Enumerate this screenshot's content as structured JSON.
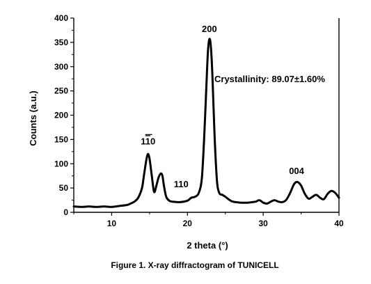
{
  "chart_data": {
    "type": "line",
    "xlabel": "2 theta (°)",
    "ylabel": "Counts (a.u.)",
    "xlim": [
      5,
      40
    ],
    "ylim": [
      0,
      400
    ],
    "x_ticks": [
      10,
      20,
      30,
      40
    ],
    "y_ticks": [
      0,
      50,
      100,
      150,
      200,
      250,
      300,
      350,
      400
    ],
    "grid": false,
    "caption": "Figure 1. X-ray diffractogram of TUNICELL",
    "annotation": "Crystallinity: 89.07±1.60%",
    "peak_labels": [
      {
        "text": "110",
        "overline": true,
        "x": 14.8,
        "y": 120
      },
      {
        "text": "110",
        "overline": false,
        "x": 16.6,
        "y": 80
      },
      {
        "text": "200",
        "overline": false,
        "x": 22.9,
        "y": 357
      },
      {
        "text": "004",
        "overline": false,
        "x": 34.4,
        "y": 62
      }
    ],
    "series": [
      {
        "color": "#000000",
        "x": [
          5,
          6,
          7,
          8,
          9,
          10,
          11,
          12,
          12.5,
          13,
          13.5,
          14,
          14.3,
          14.6,
          14.8,
          15.0,
          15.3,
          15.6,
          15.9,
          16.2,
          16.5,
          16.7,
          16.9,
          17.2,
          17.6,
          18,
          19,
          20,
          20.5,
          21,
          21.5,
          21.9,
          22.2,
          22.5,
          22.7,
          22.9,
          23.1,
          23.3,
          23.6,
          23.9,
          24.2,
          24.6,
          25,
          25.5,
          26,
          27,
          28,
          29,
          29.5,
          30,
          30.5,
          31,
          31.5,
          32,
          32.5,
          33,
          33.5,
          34,
          34.3,
          34.6,
          35,
          35.5,
          36,
          36.5,
          37,
          37.5,
          38,
          38.5,
          39,
          39.5,
          40
        ],
        "y": [
          12,
          11,
          12,
          11,
          12,
          11,
          13,
          15,
          18,
          22,
          30,
          50,
          80,
          110,
          120,
          110,
          75,
          42,
          55,
          72,
          80,
          75,
          55,
          32,
          24,
          22,
          21,
          24,
          30,
          32,
          40,
          70,
          150,
          260,
          330,
          357,
          340,
          280,
          150,
          65,
          40,
          36,
          32,
          26,
          22,
          20,
          20,
          22,
          25,
          20,
          18,
          22,
          25,
          22,
          21,
          25,
          38,
          56,
          62,
          62,
          55,
          38,
          28,
          32,
          36,
          30,
          27,
          38,
          44,
          40,
          30
        ]
      }
    ]
  }
}
